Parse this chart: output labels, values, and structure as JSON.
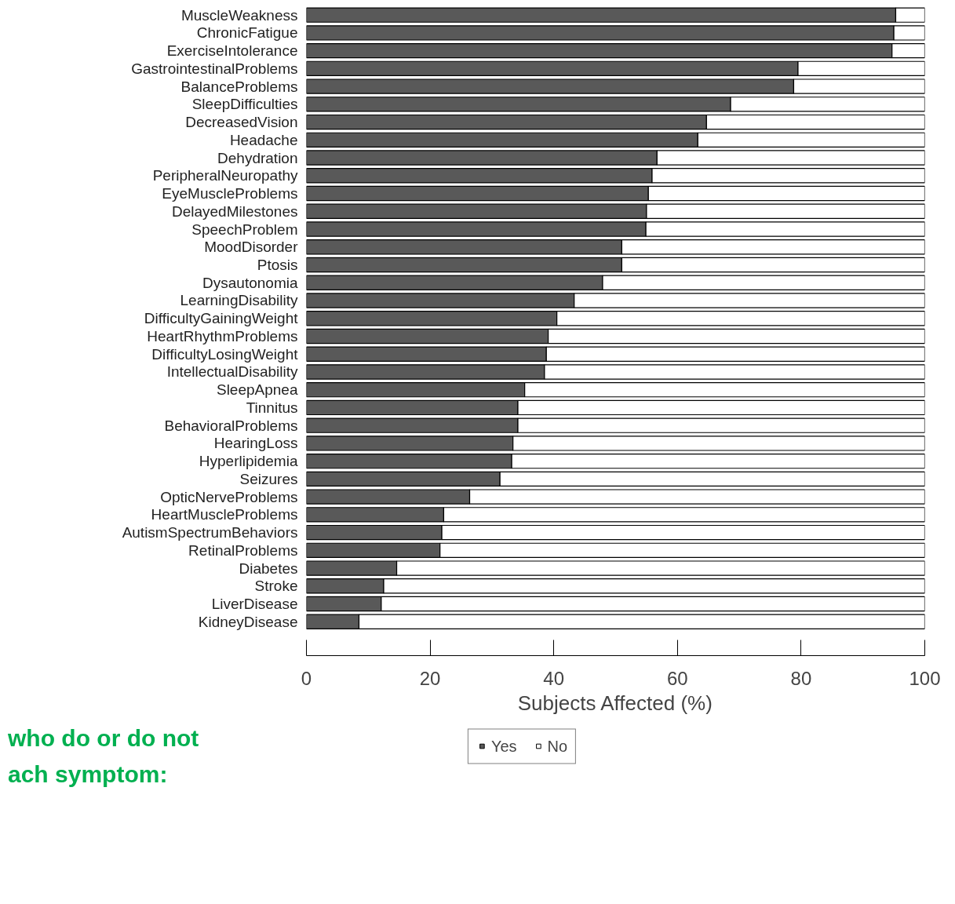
{
  "chart_data": {
    "type": "bar",
    "orientation": "horizontal",
    "stacked": true,
    "categories": [
      "MuscleWeakness",
      "ChronicFatigue",
      "ExerciseIntolerance",
      "GastrointestinalProblems",
      "BalanceProblems",
      "SleepDifficulties",
      "DecreasedVision",
      "Headache",
      "Dehydration",
      "PeripheralNeuropathy",
      "EyeMuscleProblems",
      "DelayedMilestones",
      "SpeechProblem",
      "MoodDisorder",
      "Ptosis",
      "Dysautonomia",
      "LearningDisability",
      "DifficultyGainingWeight",
      "HeartRhythmProblems",
      "DifficultyLosingWeight",
      "IntellectualDisability",
      "SleepApnea",
      "Tinnitus",
      "BehavioralProblems",
      "HearingLoss",
      "Hyperlipidemia",
      "Seizures",
      "OpticNerveProblems",
      "HeartMuscleProblems",
      "AutismSpectrumBehaviors",
      "RetinalProblems",
      "Diabetes",
      "Stroke",
      "LiverDisease",
      "KidneyDisease"
    ],
    "series": [
      {
        "name": "Yes",
        "color": "#595959",
        "values": [
          95.3,
          95.0,
          94.7,
          79.5,
          78.8,
          68.6,
          64.7,
          63.3,
          56.7,
          55.9,
          55.3,
          55.0,
          54.9,
          51.0,
          51.0,
          47.9,
          43.3,
          40.5,
          39.1,
          38.8,
          38.5,
          35.3,
          34.2,
          34.2,
          33.4,
          33.2,
          31.3,
          26.4,
          22.2,
          21.9,
          21.6,
          14.6,
          12.5,
          12.1,
          8.5
        ]
      },
      {
        "name": "No",
        "color": "#ffffff",
        "values": [
          4.7,
          5.0,
          5.3,
          20.5,
          21.2,
          31.4,
          35.3,
          36.7,
          43.3,
          44.1,
          44.7,
          45.0,
          45.1,
          49.0,
          49.0,
          52.1,
          56.7,
          59.5,
          60.9,
          61.2,
          61.5,
          64.7,
          65.8,
          65.8,
          66.6,
          66.8,
          68.7,
          73.6,
          77.8,
          78.1,
          78.4,
          85.4,
          87.5,
          87.9,
          91.5
        ]
      }
    ],
    "xlabel": "Subjects Affected (%)",
    "xlim": [
      0,
      100
    ],
    "xticks": [
      0,
      20,
      40,
      60,
      80,
      100
    ],
    "grid": false,
    "legend": "bottom",
    "annotations": [
      "who do or do not",
      "ach symptom:"
    ]
  }
}
